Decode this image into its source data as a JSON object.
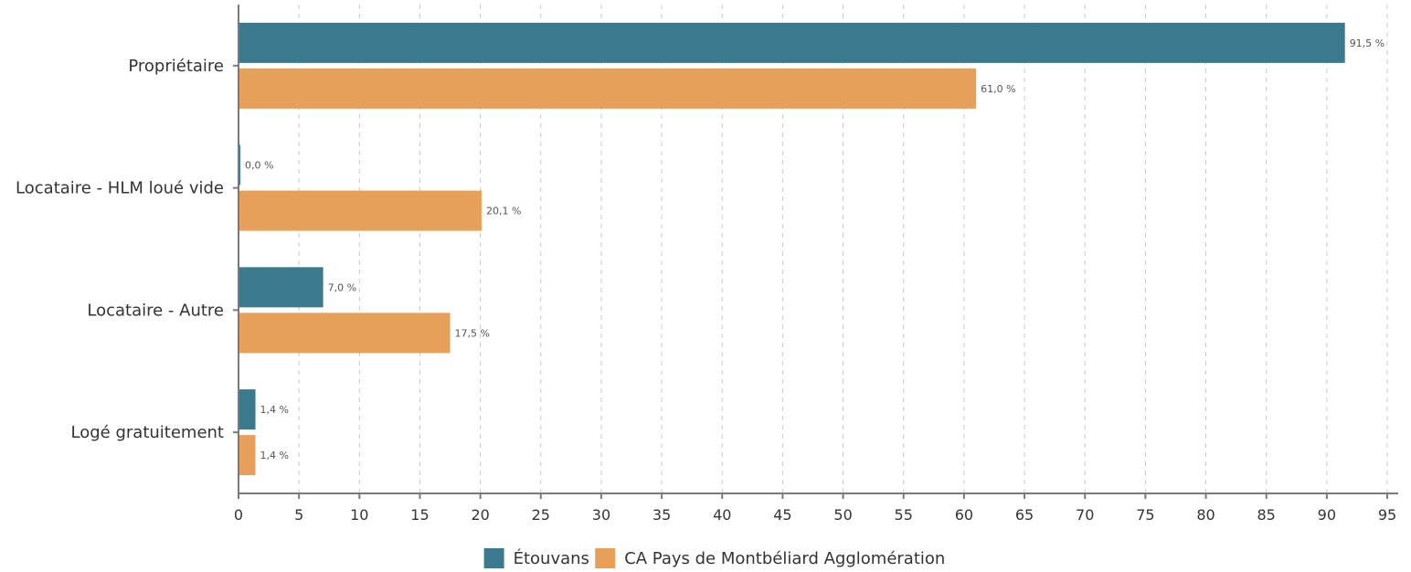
{
  "chart_data": {
    "type": "bar",
    "orientation": "horizontal",
    "categories": [
      "Propriétaire",
      "Locataire - HLM loué vide",
      "Locataire - Autre",
      "Logé gratuitement"
    ],
    "series": [
      {
        "name": "Étouvans",
        "color": "#3b7a8c",
        "values": [
          91.5,
          0.0,
          7.0,
          1.4
        ],
        "labels": [
          "91,5 %",
          "0,0 %",
          "7,0 %",
          "1,4 %"
        ]
      },
      {
        "name": "CA Pays de Montbéliard Agglomération",
        "color": "#e6a05a",
        "values": [
          61.0,
          20.1,
          17.5,
          1.4
        ],
        "labels": [
          "61,0 %",
          "20,1 %",
          "17,5 %",
          "1,4 %"
        ]
      }
    ],
    "xlim": [
      0,
      95
    ],
    "xticks": [
      0,
      5,
      10,
      15,
      20,
      25,
      30,
      35,
      40,
      45,
      50,
      55,
      60,
      65,
      70,
      75,
      80,
      85,
      90,
      95
    ],
    "grid": true,
    "legend_position": "bottom"
  }
}
